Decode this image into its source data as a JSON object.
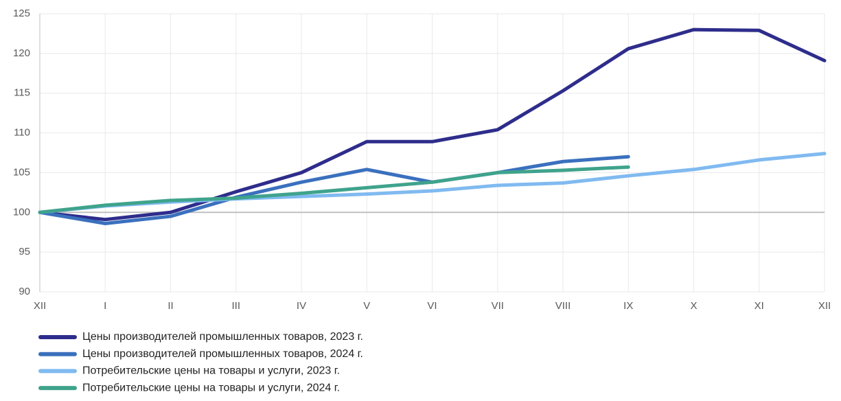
{
  "chart_data": {
    "type": "line",
    "categories": [
      "XII",
      "I",
      "II",
      "III",
      "IV",
      "V",
      "VI",
      "VII",
      "VIII",
      "IX",
      "X",
      "XI",
      "XII"
    ],
    "series": [
      {
        "name": "Цены производителей промышленных товаров, 2023 г.",
        "color": "#2e2d8c",
        "values": [
          100,
          99.1,
          100.0,
          102.6,
          105.0,
          108.9,
          108.9,
          110.4,
          115.3,
          120.6,
          123.0,
          122.9,
          119.1
        ]
      },
      {
        "name": "Цены производителей промышленных товаров, 2024 г.",
        "color": "#3a70be",
        "values": [
          100,
          98.6,
          99.5,
          101.9,
          103.8,
          105.4,
          103.8,
          105.0,
          106.4,
          107.0,
          null,
          null,
          null
        ]
      },
      {
        "name": "Потребительские цены на товары и услуги, 2023 г.",
        "color": "#80baf0",
        "values": [
          100,
          100.8,
          101.3,
          101.7,
          102.0,
          102.3,
          102.7,
          103.4,
          103.7,
          104.6,
          105.4,
          106.6,
          107.4
        ]
      },
      {
        "name": "Потребительские цены на товары и услуги, 2024 г.",
        "color": "#3fa38c",
        "values": [
          100,
          100.9,
          101.5,
          101.8,
          102.4,
          103.1,
          103.8,
          105.0,
          105.3,
          105.7,
          null,
          null,
          null
        ]
      }
    ],
    "ylim": [
      90,
      125
    ],
    "yticks": [
      90,
      95,
      100,
      105,
      110,
      115,
      120,
      125
    ],
    "reference_line": 100,
    "grid": true,
    "legend": "bottom"
  }
}
